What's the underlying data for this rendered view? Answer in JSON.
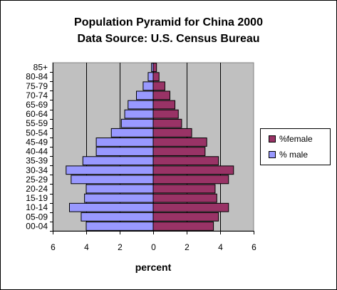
{
  "chart_data": {
    "type": "bar",
    "orientation": "horizontal",
    "title": "Population Pyramid for China 2000",
    "subtitle": "Data Source: U.S. Census Bureau",
    "xlabel": "percent",
    "ylabel": "",
    "xlim": [
      -6,
      6
    ],
    "xticks": [
      -6,
      -4,
      -2,
      0,
      2,
      4,
      6
    ],
    "xtick_labels": [
      "6",
      "4",
      "2",
      "0",
      "2",
      "4",
      "6"
    ],
    "grid": "vertical",
    "legend_position": "right",
    "categories": [
      "00-04",
      "05-09",
      "10-14",
      "15-19",
      "20-24",
      "25-29",
      "30-34",
      "35-39",
      "40-44",
      "45-49",
      "50-54",
      "55-59",
      "60-64",
      "65-69",
      "70-74",
      "75-79",
      "80-84",
      "85+"
    ],
    "series": [
      {
        "name": "%female",
        "color": "#993366",
        "values": [
          3.6,
          3.9,
          4.5,
          3.8,
          3.7,
          4.5,
          4.8,
          3.9,
          3.1,
          3.2,
          2.3,
          1.7,
          1.5,
          1.3,
          1.0,
          0.7,
          0.35,
          0.2
        ]
      },
      {
        "name": "% male",
        "color": "#9999FF",
        "values": [
          -4.0,
          -4.3,
          -5.0,
          -4.1,
          -4.0,
          -4.9,
          -5.2,
          -4.2,
          -3.4,
          -3.4,
          -2.5,
          -1.9,
          -1.7,
          -1.5,
          -1.0,
          -0.6,
          -0.3,
          -0.1
        ]
      }
    ]
  },
  "colors": {
    "plot_background": "#C0C0C0"
  }
}
